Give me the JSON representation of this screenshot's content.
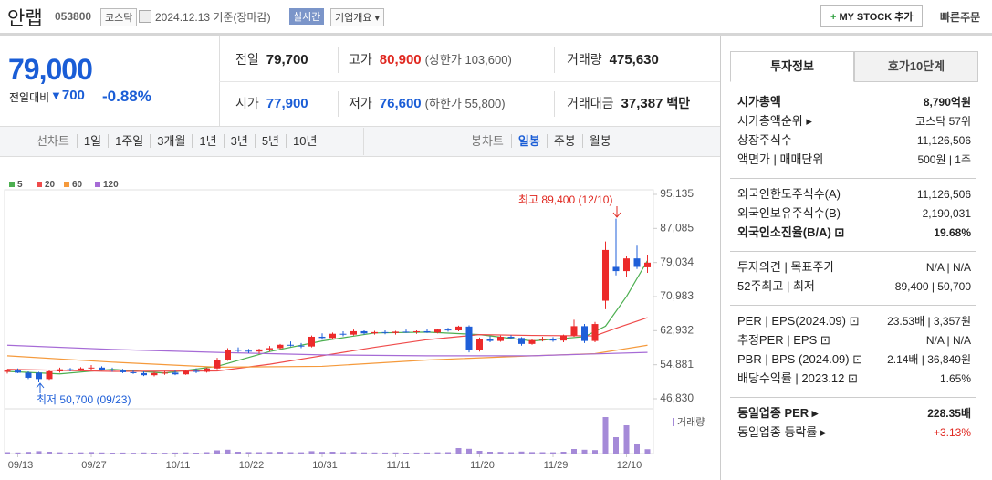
{
  "header": {
    "name": "안랩",
    "code": "053800",
    "market": "코스닥",
    "date": "2024.12.13 기준(장마감)",
    "realtime": "실시간",
    "company_info": "기업개요",
    "mystock": "MY STOCK 추가",
    "quick_order": "빠른주문"
  },
  "quote": {
    "price": "79,000",
    "change_label": "전일대비",
    "change": "700",
    "rate": "-0.88%",
    "cells": [
      {
        "label": "전일",
        "value": "79,700",
        "color": "#222"
      },
      {
        "label": "고가",
        "value": "80,900",
        "note": "(상한가 103,600)",
        "color": "#e0271f"
      },
      {
        "label": "거래량",
        "value": "475,630",
        "color": "#222"
      },
      {
        "label": "시가",
        "value": "77,900",
        "color": "#1a5dd6"
      },
      {
        "label": "저가",
        "value": "76,600",
        "note": "(하한가 55,800)",
        "color": "#1a5dd6"
      },
      {
        "label": "거래대금",
        "value": "37,387",
        "unit": "백만",
        "color": "#222"
      }
    ]
  },
  "toolbar": {
    "line_label": "선차트",
    "line_periods": [
      "1일",
      "1주일",
      "3개월",
      "1년",
      "3년",
      "5년",
      "10년"
    ],
    "candle_label": "봉차트",
    "candle_periods": [
      "일봉",
      "주봉",
      "월봉"
    ]
  },
  "chart": {
    "type": "candlestick",
    "up_color": "#ec2b2b",
    "down_color": "#1f5fd8",
    "volume_color": "#a58ad8",
    "volume_label": "거래량",
    "high_annotation": "최고 89,400 (12/10)",
    "low_annotation": "최저 50,700 (09/23)",
    "ylim": [
      46830,
      95135
    ],
    "yticks": [
      {
        "value": 95135,
        "label": "95,135"
      },
      {
        "value": 87085,
        "label": "87,085"
      },
      {
        "value": 79034,
        "label": "79,034"
      },
      {
        "value": 70983,
        "label": "70,983"
      },
      {
        "value": 62932,
        "label": "62,932"
      },
      {
        "value": 54881,
        "label": "54,881"
      },
      {
        "value": 46830,
        "label": "46,830"
      }
    ],
    "volume_ylim": [
      0,
      4200000
    ],
    "categories": [
      null,
      "09/13",
      null,
      null,
      null,
      null,
      null,
      null,
      "09/27",
      null,
      null,
      null,
      null,
      null,
      null,
      null,
      "10/11",
      null,
      null,
      null,
      null,
      null,
      null,
      "10/22",
      null,
      null,
      null,
      null,
      null,
      null,
      "10/31",
      null,
      null,
      null,
      null,
      null,
      null,
      "11/11",
      null,
      null,
      null,
      null,
      null,
      null,
      null,
      "11/20",
      null,
      null,
      null,
      null,
      null,
      null,
      "11/29",
      null,
      null,
      null,
      null,
      null,
      null,
      "12/10",
      null,
      null
    ],
    "candles": [
      [
        53200,
        53800,
        52800,
        53500
      ],
      [
        53500,
        54000,
        52900,
        53000
      ],
      [
        53000,
        53300,
        51500,
        51800
      ],
      [
        53000,
        53200,
        50700,
        51500
      ],
      [
        51500,
        53600,
        51300,
        53300
      ],
      [
        53300,
        54200,
        53000,
        53800
      ],
      [
        53800,
        54100,
        53300,
        53500
      ],
      [
        53500,
        54300,
        53400,
        54000
      ],
      [
        54000,
        54800,
        53600,
        54200
      ],
      [
        54200,
        54500,
        53500,
        53700
      ],
      [
        53700,
        54200,
        53200,
        53500
      ],
      [
        53500,
        53900,
        52900,
        53100
      ],
      [
        53100,
        53600,
        52700,
        52900
      ],
      [
        52900,
        53300,
        52200,
        52400
      ],
      [
        52400,
        53200,
        52100,
        52900
      ],
      [
        52900,
        53400,
        52500,
        53000
      ],
      [
        53000,
        53500,
        52400,
        52600
      ],
      [
        52600,
        53600,
        52500,
        53400
      ],
      [
        53400,
        54000,
        52900,
        53200
      ],
      [
        53200,
        54200,
        53000,
        54000
      ],
      [
        54000,
        56500,
        53800,
        56000
      ],
      [
        56000,
        58800,
        55800,
        58400
      ],
      [
        58400,
        59000,
        57800,
        58200
      ],
      [
        58200,
        58600,
        57600,
        58000
      ],
      [
        58000,
        58700,
        57500,
        58500
      ],
      [
        58500,
        59300,
        58000,
        58800
      ],
      [
        58800,
        59800,
        58500,
        59600
      ],
      [
        59600,
        60400,
        59200,
        59400
      ],
      [
        59400,
        60000,
        58800,
        59200
      ],
      [
        59200,
        61800,
        59000,
        61500
      ],
      [
        61500,
        62300,
        60800,
        61200
      ],
      [
        61200,
        62500,
        61000,
        62200
      ],
      [
        62200,
        62800,
        61600,
        62000
      ],
      [
        62000,
        63200,
        61800,
        62800
      ],
      [
        62800,
        63000,
        62000,
        62300
      ],
      [
        62300,
        62900,
        62000,
        62600
      ],
      [
        62600,
        63000,
        62100,
        62400
      ],
      [
        62400,
        62900,
        62000,
        62700
      ],
      [
        62700,
        63200,
        62400,
        62600
      ],
      [
        62600,
        63000,
        62200,
        62800
      ],
      [
        62800,
        63300,
        62400,
        62500
      ],
      [
        62500,
        63400,
        62300,
        63200
      ],
      [
        63200,
        63600,
        62700,
        63000
      ],
      [
        63000,
        64100,
        62800,
        63900
      ],
      [
        63900,
        64200,
        57800,
        58300
      ],
      [
        58300,
        61300,
        58000,
        61000
      ],
      [
        61000,
        61600,
        60200,
        60500
      ],
      [
        60500,
        61800,
        60300,
        61500
      ],
      [
        61500,
        61900,
        60900,
        61200
      ],
      [
        61200,
        61400,
        59400,
        59800
      ],
      [
        59800,
        61000,
        59600,
        60700
      ],
      [
        60700,
        61500,
        60400,
        61000
      ],
      [
        61000,
        61400,
        60300,
        60600
      ],
      [
        60600,
        62000,
        60200,
        61800
      ],
      [
        61800,
        65500,
        61500,
        64000
      ],
      [
        64000,
        64500,
        60000,
        60500
      ],
      [
        60500,
        65000,
        60200,
        64500
      ],
      [
        70000,
        84000,
        68000,
        82000
      ],
      [
        78000,
        89400,
        76000,
        77000
      ],
      [
        77000,
        80500,
        75500,
        80000
      ],
      [
        80000,
        83000,
        77500,
        78000
      ],
      [
        77900,
        80900,
        76600,
        79000
      ]
    ],
    "volume": [
      150000,
      120000,
      180000,
      260000,
      200000,
      140000,
      110000,
      130000,
      160000,
      120000,
      100000,
      110000,
      90000,
      120000,
      100000,
      90000,
      110000,
      130000,
      100000,
      150000,
      350000,
      420000,
      200000,
      160000,
      150000,
      170000,
      190000,
      150000,
      140000,
      260000,
      180000,
      200000,
      150000,
      170000,
      130000,
      120000,
      110000,
      120000,
      100000,
      110000,
      120000,
      140000,
      150000,
      600000,
      520000,
      300000,
      200000,
      180000,
      150000,
      220000,
      160000,
      150000,
      140000,
      200000,
      500000,
      420000,
      380000,
      4000000,
      1800000,
      3100000,
      1000000,
      475630
    ],
    "series": [
      {
        "name": "5",
        "color": "#4caf50",
        "x": [
          0,
          5,
          10,
          15,
          20,
          25,
          30,
          35,
          40,
          45,
          50,
          55,
          57,
          59,
          61
        ],
        "values": [
          53300,
          52700,
          53800,
          52900,
          54500,
          58000,
          60500,
          62400,
          62600,
          62000,
          60500,
          61500,
          64000,
          71000,
          79500
        ]
      },
      {
        "name": "20",
        "color": "#ef4b4b",
        "x": [
          0,
          10,
          20,
          25,
          30,
          35,
          40,
          45,
          50,
          56,
          58,
          61
        ],
        "values": [
          53800,
          53300,
          53400,
          55000,
          57000,
          59000,
          60800,
          62000,
          61800,
          61700,
          63500,
          66000
        ]
      },
      {
        "name": "60",
        "color": "#f59a3c",
        "x": [
          0,
          10,
          20,
          30,
          40,
          50,
          56,
          61
        ],
        "values": [
          57000,
          55500,
          54300,
          54500,
          56000,
          57000,
          57500,
          59500
        ]
      },
      {
        "name": "120",
        "color": "#a66bd6",
        "x": [
          0,
          10,
          20,
          30,
          40,
          50,
          61
        ],
        "values": [
          59500,
          58500,
          57800,
          57200,
          57000,
          57000,
          57800
        ]
      }
    ]
  },
  "info": {
    "tabs": [
      "투자정보",
      "호가10단계"
    ],
    "groups": [
      [
        {
          "label": "시가총액",
          "value": "8,790억원",
          "bold": true
        },
        {
          "label": "시가총액순위 ▸",
          "value": "코스닥 57위"
        },
        {
          "label": "상장주식수",
          "value": "11,126,506"
        },
        {
          "label": "액면가 | 매매단위",
          "value": "500원 | 1주"
        }
      ],
      [
        {
          "label": "외국인한도주식수(A)",
          "value": "11,126,506"
        },
        {
          "label": "외국인보유주식수(B)",
          "value": "2,190,031"
        },
        {
          "label": "외국인소진율(B/A) ⊡",
          "value": "19.68%",
          "bold": true
        }
      ],
      [
        {
          "label": "투자의견 | 목표주가",
          "value": "N/A | N/A"
        },
        {
          "label": "52주최고 | 최저",
          "value": "89,400 | 50,700"
        }
      ],
      [
        {
          "label": "PER | EPS(2024.09) ⊡",
          "value": "23.53배 | 3,357원"
        },
        {
          "label": "추정PER | EPS ⊡",
          "value": "N/A | N/A"
        },
        {
          "label": "PBR | BPS (2024.09) ⊡",
          "value": "2.14배 | 36,849원"
        },
        {
          "label": "배당수익률 | 2023.12 ⊡",
          "value": "1.65%"
        }
      ],
      [
        {
          "label": "동일업종 PER ▸",
          "value": "228.35배",
          "bold": true
        },
        {
          "label": "동일업종 등락률 ▸",
          "value": "+3.13%",
          "color": "#e0271f"
        }
      ]
    ]
  }
}
